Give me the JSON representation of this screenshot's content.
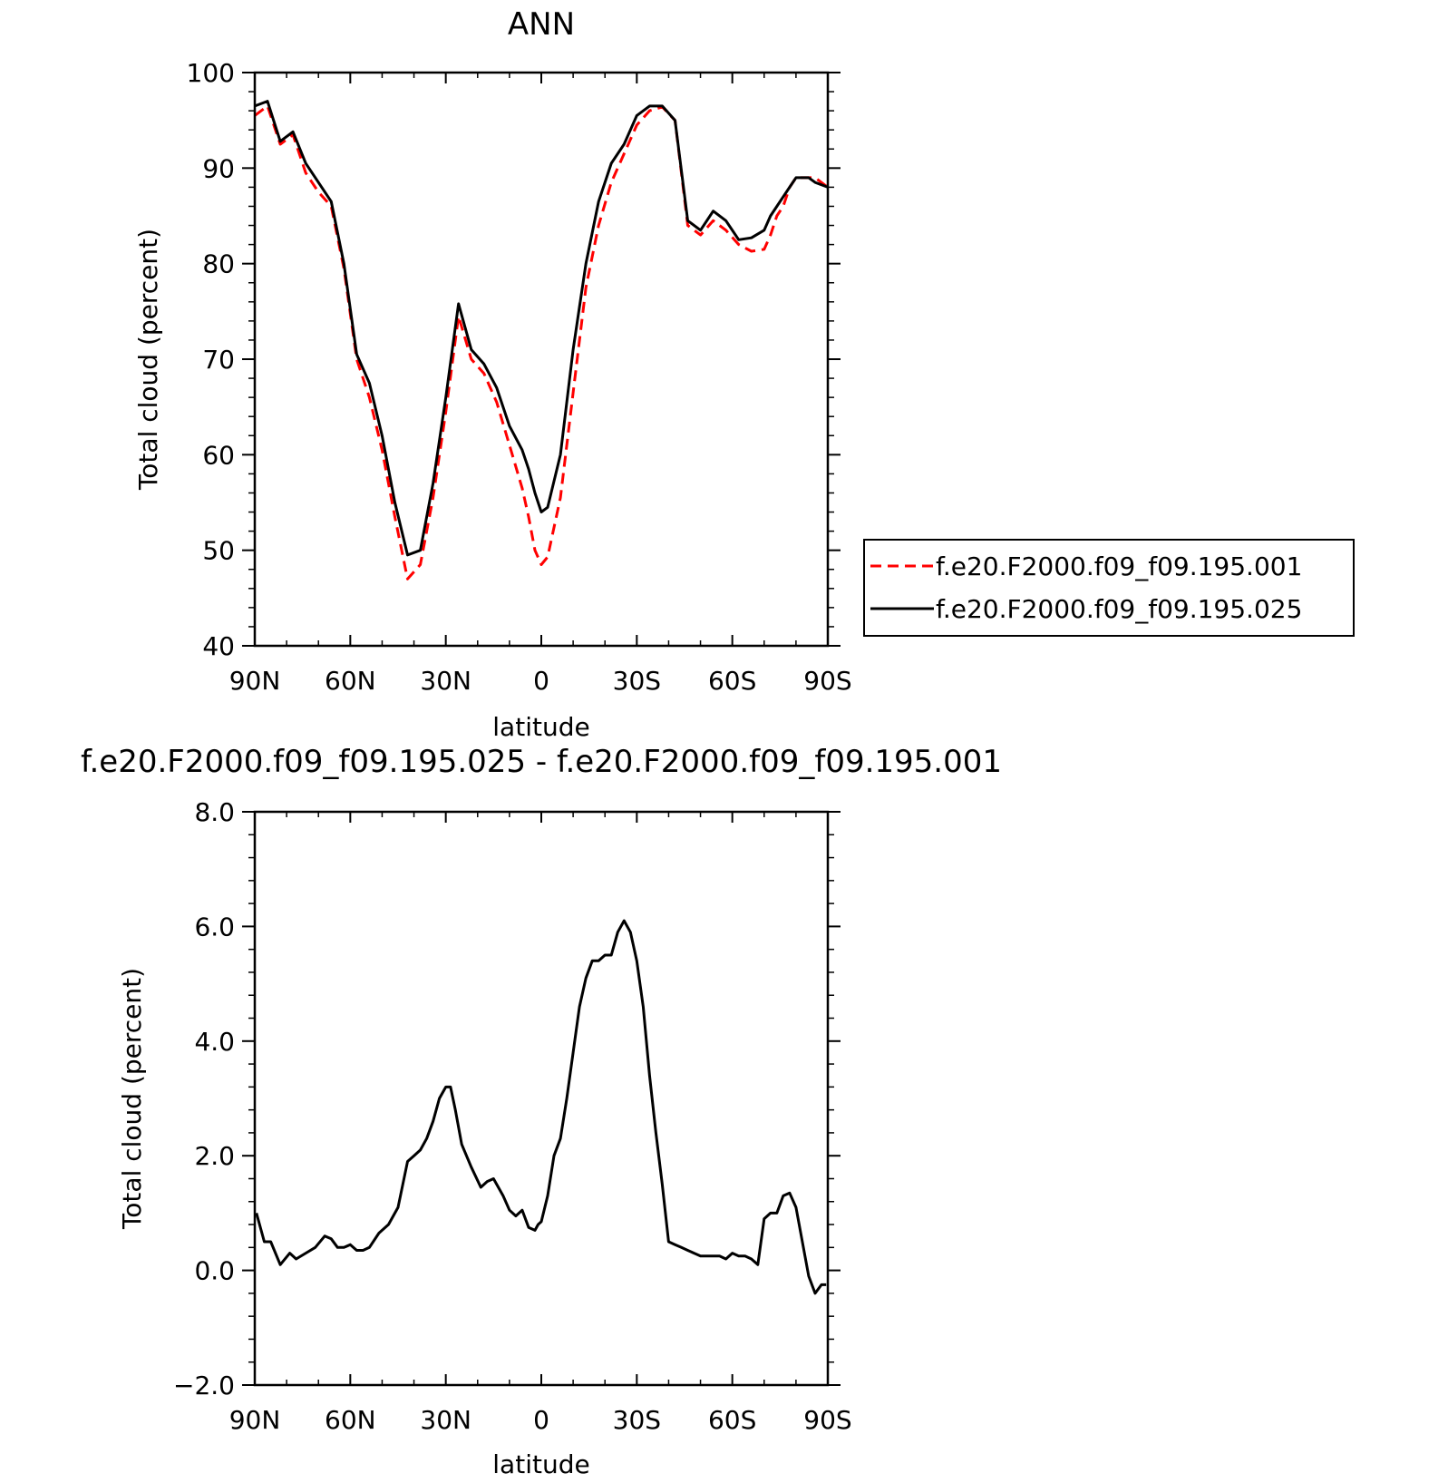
{
  "chart_data": [
    {
      "type": "line",
      "title": "ANN",
      "xlabel": "latitude",
      "ylabel": "Total cloud (percent)",
      "xlim": [
        90,
        -90
      ],
      "ylim": [
        40,
        100
      ],
      "x_ticks": [
        90,
        60,
        30,
        0,
        -30,
        -60,
        -90
      ],
      "x_tick_labels": [
        "90N",
        "60N",
        "30N",
        "0",
        "30S",
        "60S",
        "90S"
      ],
      "y_ticks": [
        40,
        50,
        60,
        70,
        80,
        90,
        100
      ],
      "y_tick_labels": [
        "40",
        "50",
        "60",
        "70",
        "80",
        "90",
        "100"
      ],
      "grid": false,
      "legend_position": "right",
      "series": [
        {
          "name": "f.e20.F2000.f09_f09.195.001",
          "color": "#ff0000",
          "dash": "dashed",
          "x": [
            90,
            86,
            82,
            78,
            74,
            70,
            66,
            62,
            58,
            54,
            50,
            46,
            42,
            38,
            34,
            30,
            26,
            22,
            18,
            14,
            10,
            6,
            4,
            2,
            0,
            -2,
            -6,
            -10,
            -14,
            -18,
            -22,
            -26,
            -28,
            -30,
            -34,
            -38,
            -42,
            -46,
            -50,
            -54,
            -58,
            -62,
            -66,
            -70,
            -72,
            -74,
            -76,
            -78,
            -80,
            -82,
            -84,
            -86,
            -90
          ],
          "values": [
            95.5,
            96.5,
            92.5,
            93.5,
            89.5,
            87.5,
            86,
            79.5,
            70,
            66,
            60.5,
            53.5,
            47,
            48.5,
            55.5,
            64.5,
            74.5,
            70,
            68.5,
            65.5,
            61,
            56.5,
            53.5,
            50,
            48.5,
            49.3,
            55.5,
            66.5,
            77.5,
            84,
            88.5,
            91.5,
            93,
            94.5,
            96,
            96.4,
            95,
            84,
            83,
            84.5,
            83.5,
            82,
            81.3,
            81.5,
            83,
            85,
            86,
            88,
            89,
            89,
            89,
            89,
            88
          ]
        },
        {
          "name": "f.e20.F2000.f09_f09.195.025",
          "color": "#000000",
          "dash": "solid",
          "x": [
            90,
            86,
            82,
            78,
            74,
            70,
            66,
            62,
            58,
            54,
            50,
            46,
            42,
            38,
            34,
            30,
            26,
            22,
            18,
            14,
            10,
            6,
            4,
            2,
            0,
            -2,
            -6,
            -10,
            -14,
            -18,
            -22,
            -26,
            -28,
            -30,
            -34,
            -38,
            -42,
            -46,
            -50,
            -54,
            -58,
            -62,
            -66,
            -70,
            -72,
            -74,
            -76,
            -78,
            -80,
            -82,
            -84,
            -86,
            -90
          ],
          "values": [
            96.5,
            97,
            92.8,
            93.8,
            90.5,
            88.5,
            86.5,
            80,
            70.5,
            67.5,
            62,
            55,
            49.5,
            50,
            57,
            66,
            75.8,
            71,
            69.5,
            67,
            63,
            60.5,
            58.5,
            56,
            54,
            54.5,
            60,
            71,
            80,
            86.5,
            90.5,
            92.5,
            94,
            95.5,
            96.5,
            96.5,
            95,
            84.5,
            83.5,
            85.5,
            84.5,
            82.5,
            82.7,
            83.5,
            85,
            86,
            87,
            88,
            89,
            89,
            89,
            88.5,
            88
          ]
        }
      ]
    },
    {
      "type": "line",
      "title": "f.e20.F2000.f09_f09.195.025 - f.e20.F2000.f09_f09.195.001",
      "xlabel": "latitude",
      "ylabel": "Total cloud (percent)",
      "xlim": [
        90,
        -90
      ],
      "ylim": [
        -2.0,
        8.0
      ],
      "x_ticks": [
        90,
        60,
        30,
        0,
        -30,
        -60,
        -90
      ],
      "x_tick_labels": [
        "90N",
        "60N",
        "30N",
        "0",
        "30S",
        "60S",
        "90S"
      ],
      "y_ticks": [
        -2.0,
        0.0,
        2.0,
        4.0,
        6.0,
        8.0
      ],
      "y_tick_labels": [
        "−2.0",
        "0.0",
        "2.0",
        "4.0",
        "6.0",
        "8.0"
      ],
      "grid": false,
      "series": [
        {
          "color": "#000000",
          "dash": "solid",
          "x": [
            89.5,
            87,
            85,
            82,
            79,
            77,
            74,
            71,
            68,
            66,
            64,
            62,
            60,
            58,
            56,
            54,
            51,
            48,
            45,
            42,
            40,
            38,
            36,
            34,
            32,
            30,
            28.5,
            27,
            25,
            22,
            19,
            17,
            15,
            12,
            10,
            8,
            6,
            4,
            2,
            1,
            0,
            -2,
            -4,
            -6,
            -8,
            -10,
            -12,
            -14,
            -16,
            -18,
            -20,
            -22,
            -24,
            -26,
            -28,
            -30,
            -32,
            -34,
            -36,
            -38,
            -40,
            -42,
            -44,
            -46,
            -48,
            -50,
            -52,
            -54,
            -56,
            -58,
            -60,
            -62,
            -64,
            -66,
            -68,
            -70,
            -72,
            -74,
            -76,
            -78,
            -80,
            -82,
            -84,
            -86,
            -88,
            -89.5
          ],
          "values": [
            1.0,
            0.5,
            0.5,
            0.1,
            0.3,
            0.2,
            0.3,
            0.4,
            0.6,
            0.55,
            0.4,
            0.4,
            0.45,
            0.35,
            0.35,
            0.4,
            0.65,
            0.8,
            1.1,
            1.9,
            2.0,
            2.1,
            2.3,
            2.6,
            3.0,
            3.2,
            3.2,
            2.8,
            2.2,
            1.8,
            1.45,
            1.55,
            1.6,
            1.3,
            1.05,
            0.95,
            1.05,
            0.75,
            0.7,
            0.8,
            0.85,
            1.3,
            2.0,
            2.3,
            3.0,
            3.8,
            4.6,
            5.1,
            5.4,
            5.4,
            5.5,
            5.5,
            5.9,
            6.1,
            5.9,
            5.4,
            4.6,
            3.4,
            2.4,
            1.5,
            0.5,
            0.45,
            0.4,
            0.35,
            0.3,
            0.25,
            0.25,
            0.25,
            0.25,
            0.2,
            0.3,
            0.25,
            0.25,
            0.2,
            0.1,
            0.9,
            1.0,
            1.0,
            1.3,
            1.35,
            1.1,
            0.5,
            -0.1,
            -0.4,
            -0.25,
            -0.25
          ]
        }
      ]
    }
  ]
}
